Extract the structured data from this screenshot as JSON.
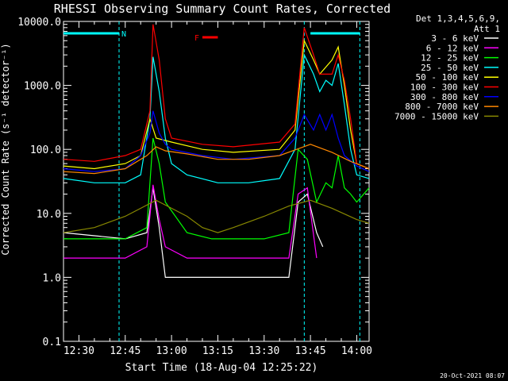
{
  "chart_data": {
    "type": "line",
    "title": "RHESSI Observing Summary Count Rates, Corrected",
    "ylabel": "Corrected Count Rate (s⁻¹ detector⁻¹)",
    "xlabel": "Start Time (18-Aug-04 12:25:22)",
    "y_scale": "log",
    "ylim": [
      0.1,
      10000
    ],
    "xlim": [
      "12:25",
      "14:04"
    ],
    "y_ticks": [
      "0.1",
      "1.0",
      "10.0",
      "100.0",
      "1000.0",
      "10000.0"
    ],
    "x_ticks": [
      "12:30",
      "12:45",
      "13:00",
      "13:15",
      "13:30",
      "13:45",
      "14:00"
    ],
    "legend_header": [
      "Det 1,3,4,5,6,9,",
      "Att 1"
    ],
    "footer": "20-Oct-2021 08:07",
    "annotations": {
      "night_label": "N",
      "flare_label": "F",
      "night_periods": [
        [
          "12:25",
          "12:43"
        ],
        [
          "13:45",
          "14:01"
        ]
      ],
      "flare_period": [
        "13:10",
        "13:15"
      ],
      "vertical_lines": [
        "12:43",
        "13:43",
        "14:01"
      ]
    },
    "series": [
      {
        "name": "3 - 6 keV",
        "color": "#ffffff",
        "points": [
          [
            "12:25",
            5
          ],
          [
            "12:45",
            4
          ],
          [
            "12:52",
            5
          ],
          [
            "12:54",
            25
          ],
          [
            "12:56",
            6
          ],
          [
            "12:58",
            1
          ],
          [
            "13:05",
            1
          ],
          [
            "13:10",
            1
          ],
          [
            "13:20",
            1
          ],
          [
            "13:30",
            1
          ],
          [
            "13:38",
            1
          ],
          [
            "13:41",
            15
          ],
          [
            "13:44",
            20
          ],
          [
            "13:47",
            5
          ],
          [
            "13:49",
            3
          ]
        ]
      },
      {
        "name": "6 - 12 keV",
        "color": "#ff00ff",
        "points": [
          [
            "12:25",
            2
          ],
          [
            "12:45",
            2
          ],
          [
            "12:52",
            3
          ],
          [
            "12:54",
            28
          ],
          [
            "12:56",
            8
          ],
          [
            "12:58",
            3
          ],
          [
            "13:05",
            2
          ],
          [
            "13:15",
            2
          ],
          [
            "13:28",
            2
          ],
          [
            "13:38",
            2
          ],
          [
            "13:41",
            20
          ],
          [
            "13:44",
            25
          ],
          [
            "13:47",
            2
          ]
        ]
      },
      {
        "name": "12 - 25 keV",
        "color": "#00ff00",
        "points": [
          [
            "12:25",
            4
          ],
          [
            "12:45",
            4
          ],
          [
            "12:52",
            6
          ],
          [
            "12:54",
            150
          ],
          [
            "12:56",
            60
          ],
          [
            "12:58",
            15
          ],
          [
            "13:05",
            5
          ],
          [
            "13:13",
            4
          ],
          [
            "13:20",
            4
          ],
          [
            "13:30",
            4
          ],
          [
            "13:38",
            5
          ],
          [
            "13:41",
            100
          ],
          [
            "13:44",
            70
          ],
          [
            "13:47",
            15
          ],
          [
            "13:50",
            30
          ],
          [
            "13:52",
            25
          ],
          [
            "13:54",
            80
          ],
          [
            "13:56",
            25
          ],
          [
            "13:58",
            20
          ],
          [
            "14:00",
            15
          ],
          [
            "14:04",
            25
          ]
        ]
      },
      {
        "name": "25 - 50 keV",
        "color": "#00ffff",
        "points": [
          [
            "12:25",
            35
          ],
          [
            "12:35",
            30
          ],
          [
            "12:45",
            30
          ],
          [
            "12:50",
            40
          ],
          [
            "12:53",
            300
          ],
          [
            "12:54",
            2800
          ],
          [
            "12:56",
            800
          ],
          [
            "12:58",
            150
          ],
          [
            "13:00",
            60
          ],
          [
            "13:05",
            40
          ],
          [
            "13:15",
            30
          ],
          [
            "13:25",
            30
          ],
          [
            "13:35",
            35
          ],
          [
            "13:40",
            100
          ],
          [
            "13:43",
            3000
          ],
          [
            "13:46",
            1500
          ],
          [
            "13:48",
            800
          ],
          [
            "13:50",
            1200
          ],
          [
            "13:52",
            1000
          ],
          [
            "13:54",
            2200
          ],
          [
            "13:56",
            500
          ],
          [
            "13:58",
            100
          ],
          [
            "14:00",
            40
          ],
          [
            "14:04",
            35
          ]
        ]
      },
      {
        "name": "50 - 100 keV",
        "color": "#ffff00",
        "points": [
          [
            "12:25",
            55
          ],
          [
            "12:35",
            50
          ],
          [
            "12:45",
            60
          ],
          [
            "12:50",
            80
          ],
          [
            "12:53",
            300
          ],
          [
            "12:55",
            150
          ],
          [
            "13:00",
            130
          ],
          [
            "13:10",
            100
          ],
          [
            "13:20",
            90
          ],
          [
            "13:35",
            100
          ],
          [
            "13:40",
            200
          ],
          [
            "13:43",
            5000
          ],
          [
            "13:46",
            2500
          ],
          [
            "13:48",
            1500
          ],
          [
            "13:52",
            2500
          ],
          [
            "13:54",
            4000
          ],
          [
            "13:56",
            1000
          ],
          [
            "13:58",
            200
          ],
          [
            "14:00",
            60
          ],
          [
            "14:04",
            50
          ]
        ]
      },
      {
        "name": "100 - 300 keV",
        "color": "#ff0000",
        "points": [
          [
            "12:25",
            70
          ],
          [
            "12:35",
            65
          ],
          [
            "12:45",
            80
          ],
          [
            "12:50",
            100
          ],
          [
            "12:53",
            400
          ],
          [
            "12:54",
            9000
          ],
          [
            "12:56",
            2500
          ],
          [
            "12:58",
            300
          ],
          [
            "13:00",
            150
          ],
          [
            "13:10",
            120
          ],
          [
            "13:20",
            110
          ],
          [
            "13:35",
            130
          ],
          [
            "13:40",
            250
          ],
          [
            "13:43",
            8000
          ],
          [
            "13:46",
            3000
          ],
          [
            "13:48",
            1500
          ],
          [
            "13:52",
            1500
          ],
          [
            "13:54",
            3000
          ],
          [
            "13:56",
            1200
          ],
          [
            "13:58",
            300
          ],
          [
            "14:00",
            60
          ],
          [
            "14:04",
            50
          ]
        ]
      },
      {
        "name": "300 - 800 keV",
        "color": "#0000ff",
        "points": [
          [
            "12:25",
            50
          ],
          [
            "12:35",
            45
          ],
          [
            "12:45",
            50
          ],
          [
            "12:50",
            80
          ],
          [
            "12:53",
            180
          ],
          [
            "12:54",
            400
          ],
          [
            "12:56",
            180
          ],
          [
            "12:58",
            120
          ],
          [
            "13:00",
            100
          ],
          [
            "13:10",
            80
          ],
          [
            "13:20",
            70
          ],
          [
            "13:35",
            80
          ],
          [
            "13:40",
            150
          ],
          [
            "13:43",
            350
          ],
          [
            "13:46",
            200
          ],
          [
            "13:48",
            350
          ],
          [
            "13:50",
            200
          ],
          [
            "13:52",
            350
          ],
          [
            "13:54",
            150
          ],
          [
            "13:56",
            80
          ],
          [
            "14:00",
            55
          ],
          [
            "14:04",
            45
          ]
        ]
      },
      {
        "name": "800 - 7000 keV",
        "color": "#ff8800",
        "points": [
          [
            "12:25",
            45
          ],
          [
            "12:35",
            42
          ],
          [
            "12:45",
            50
          ],
          [
            "12:52",
            80
          ],
          [
            "12:55",
            110
          ],
          [
            "12:58",
            95
          ],
          [
            "13:05",
            85
          ],
          [
            "13:15",
            70
          ],
          [
            "13:25",
            70
          ],
          [
            "13:35",
            80
          ],
          [
            "13:45",
            120
          ],
          [
            "13:52",
            90
          ],
          [
            "13:58",
            65
          ],
          [
            "14:04",
            50
          ]
        ]
      },
      {
        "name": "7000 - 15000 keV",
        "color": "#888800",
        "points": [
          [
            "12:25",
            5
          ],
          [
            "12:35",
            6
          ],
          [
            "12:45",
            9
          ],
          [
            "12:55",
            16
          ],
          [
            "13:00",
            12
          ],
          [
            "13:05",
            9
          ],
          [
            "13:10",
            6
          ],
          [
            "13:15",
            5
          ],
          [
            "13:20",
            6
          ],
          [
            "13:30",
            9
          ],
          [
            "13:38",
            13
          ],
          [
            "13:45",
            16
          ],
          [
            "13:52",
            12
          ],
          [
            "14:00",
            8
          ],
          [
            "14:04",
            7
          ]
        ]
      }
    ]
  }
}
